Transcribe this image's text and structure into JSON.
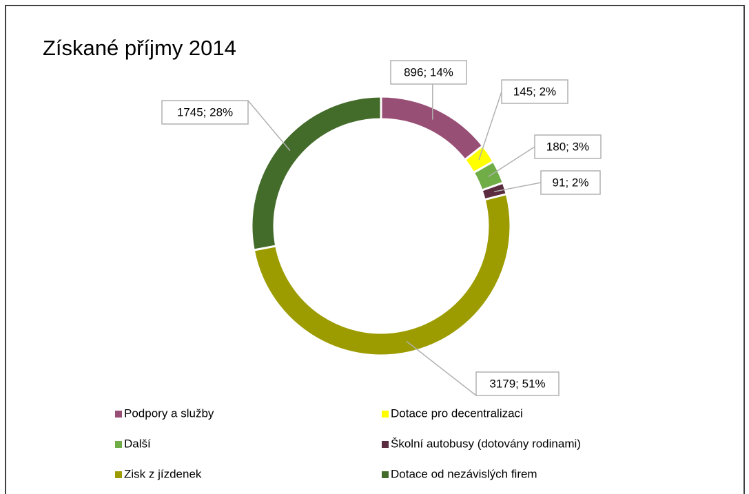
{
  "chart_data": {
    "type": "donut",
    "title": "Získané příjmy 2014",
    "categories": [
      "Podpory a služby",
      "Dotace pro decentralizaci",
      "Další",
      "Školní autobusy (dotovány rodinami)",
      "Zisk z jízdenek",
      "Dotace od nezávislých firem"
    ],
    "values": [
      896,
      145,
      180,
      91,
      3179,
      1745
    ],
    "value_labels": [
      "896; 14%",
      "145; 2%",
      "180; 3%",
      "91; 2%",
      "3179; 51%",
      "1745; 28%"
    ],
    "colors": [
      "#984f75",
      "#ffff00",
      "#70ad47",
      "#5b2b3f",
      "#9c9c00",
      "#436b2a"
    ]
  }
}
